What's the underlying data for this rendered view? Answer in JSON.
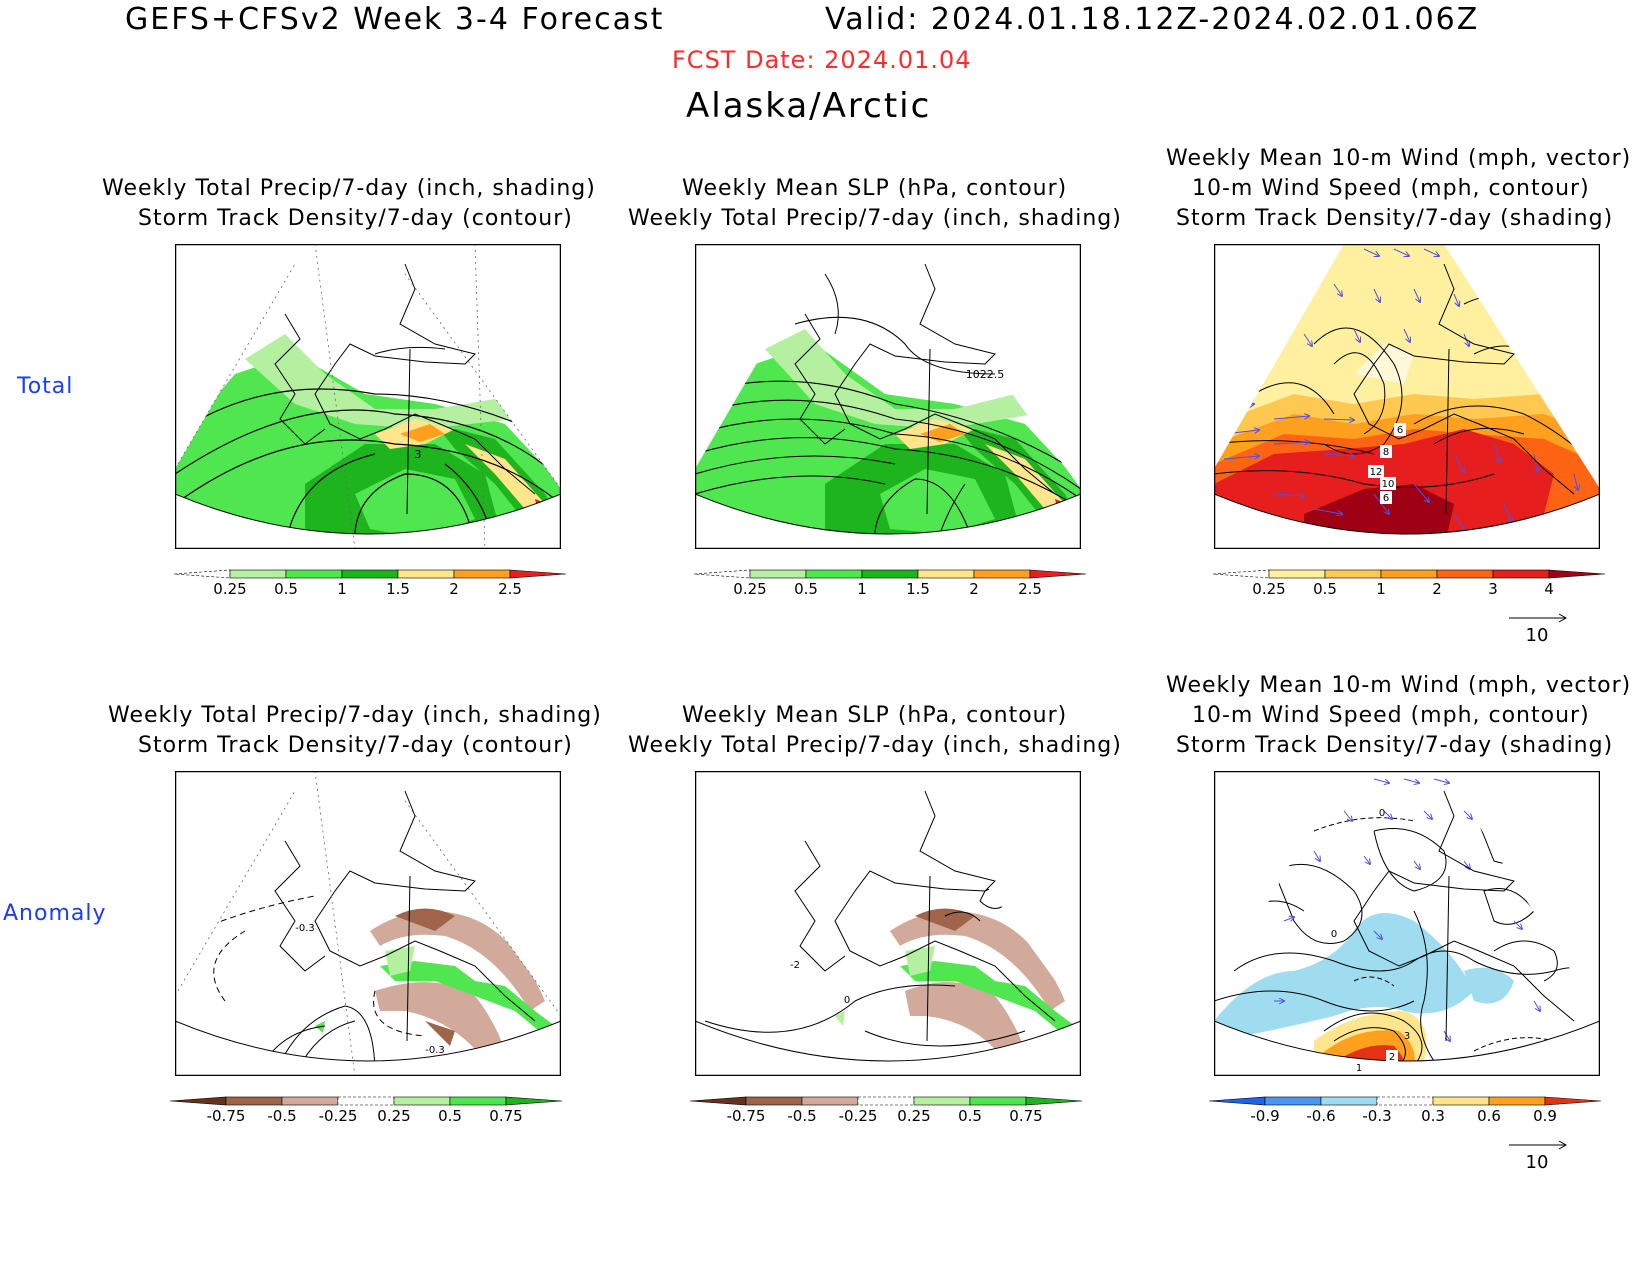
{
  "header": {
    "title": "GEFS+CFSv2 Week 3-4 Forecast",
    "valid": "Valid: 2024.01.18.12Z-2024.02.01.06Z",
    "fcst_date": "FCST Date: 2024.01.04",
    "region": "Alaska/Arctic"
  },
  "row_labels": {
    "total": "Total",
    "anomaly": "Anomaly"
  },
  "panels": {
    "p1": {
      "line1": "Weekly Total Precip/7-day (inch, shading)",
      "line2": "Storm Track Density/7-day (contour)",
      "contour_label": "3"
    },
    "p2": {
      "line1": "Weekly Mean SLP (hPa, contour)",
      "line2": "Weekly Total Precip/7-day (inch, shading)",
      "contour_label": "1022.5"
    },
    "p3": {
      "line0": "Weekly Mean 10-m Wind (mph, vector)",
      "line1": "10-m Wind Speed (mph, contour)",
      "line2": "Storm Track Density/7-day (shading)",
      "labels": [
        "6",
        "8",
        "12",
        "10",
        "6"
      ]
    },
    "p4": {
      "line1": "Weekly Total Precip/7-day (inch, shading)",
      "line2": "Storm Track Density/7-day (contour)",
      "labels": [
        "-0.3",
        "-0.3"
      ]
    },
    "p5": {
      "line1": "Weekly Mean SLP (hPa, contour)",
      "line2": "Weekly Total Precip/7-day (inch, shading)",
      "labels": [
        "-2",
        "0"
      ]
    },
    "p6": {
      "line0": "Weekly Mean 10-m Wind (mph, vector)",
      "line1": "10-m Wind Speed (mph, contour)",
      "line2": "Storm Track Density/7-day (shading)",
      "labels": [
        "0",
        "0",
        "3",
        "2",
        "1"
      ]
    }
  },
  "colorbars": {
    "precip_total": {
      "colors": [
        "#ffffff",
        "#b4f0a0",
        "#50e650",
        "#1eb41e",
        "#ffe68c",
        "#ffa01e",
        "#e61e1e"
      ],
      "ticks": [
        "0.25",
        "0.5",
        "1",
        "1.5",
        "2",
        "2.5"
      ]
    },
    "storm_total": {
      "colors": [
        "#ffffff",
        "#fff0a0",
        "#ffc850",
        "#ffa01e",
        "#ff6414",
        "#e61e1e",
        "#a00014"
      ],
      "ticks": [
        "0.25",
        "0.5",
        "1",
        "2",
        "3",
        "4"
      ]
    },
    "precip_anom": {
      "colors": [
        "#64321e",
        "#a0644b",
        "#d2aa9b",
        "#ffffff",
        "#b4f0a0",
        "#50e650",
        "#1eb41e"
      ],
      "ticks": [
        "-0.75",
        "-0.5",
        "-0.25",
        "0.25",
        "0.5",
        "0.75"
      ]
    },
    "storm_anom": {
      "colors": [
        "#1e64e6",
        "#4b96f0",
        "#a0dcf0",
        "#ffffff",
        "#ffe68c",
        "#ffa01e",
        "#e63214"
      ],
      "ticks": [
        "-0.9",
        "-0.6",
        "-0.3",
        "0.3",
        "0.6",
        "0.9"
      ]
    }
  },
  "vector_ref": "10"
}
